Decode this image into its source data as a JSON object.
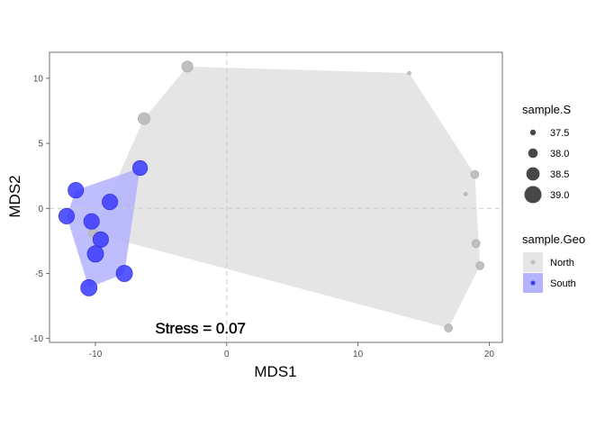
{
  "chart_data": {
    "type": "scatter",
    "xlabel": "MDS1",
    "ylabel": "MDS2",
    "xlim": [
      -13.5,
      21
    ],
    "ylim": [
      -10.3,
      12
    ],
    "x_ticks": [
      -10,
      0,
      10,
      20
    ],
    "y_ticks": [
      -10,
      -5,
      0,
      5,
      10
    ],
    "x_tick_labels": [
      "-10",
      "0",
      "10",
      "20"
    ],
    "y_tick_labels": [
      "-10",
      "-5",
      "0",
      "5",
      "10"
    ],
    "reference_lines": {
      "x": 0,
      "y": 0,
      "style": "dashed",
      "color": "#cccccc"
    },
    "grid": false,
    "annotation": {
      "text": "Stress = 0.07",
      "x": -2,
      "y": -9.2
    },
    "size_legend": {
      "title": "sample.S",
      "placement": "right",
      "entries": [
        {
          "label": "37.5",
          "value": 37.5
        },
        {
          "label": "38.0",
          "value": 38.0
        },
        {
          "label": "38.5",
          "value": 38.5
        },
        {
          "label": "39.0",
          "value": 39.0
        }
      ]
    },
    "color_legend": {
      "title": "sample.Geo",
      "placement": "right",
      "entries": [
        {
          "label": "North",
          "point_color": "#bdbdbd",
          "fill": "#e5e5e5"
        },
        {
          "label": "South",
          "point_color": "#3a3aff",
          "fill": "#b3b3ff"
        }
      ]
    },
    "series": [
      {
        "name": "North",
        "point_color": "#bdbdbd",
        "hull_fill": "#e5e5e5",
        "points": [
          {
            "x": -3,
            "y": 10.9,
            "s": 38.2
          },
          {
            "x": 13.9,
            "y": 10.4,
            "s": 37.2
          },
          {
            "x": -6.3,
            "y": 6.9,
            "s": 38.3
          },
          {
            "x": 18.9,
            "y": 2.6,
            "s": 37.8
          },
          {
            "x": 18.2,
            "y": 1.1,
            "s": 37.2
          },
          {
            "x": 19.0,
            "y": -2.7,
            "s": 37.8
          },
          {
            "x": 19.3,
            "y": -4.4,
            "s": 37.8
          },
          {
            "x": 16.9,
            "y": -9.2,
            "s": 37.8
          },
          {
            "x": -10.2,
            "y": -1.9,
            "s": 37.8
          }
        ]
      },
      {
        "name": "South",
        "point_color": "#3a3aff",
        "hull_fill": "#b3b3ff",
        "points": [
          {
            "x": -6.6,
            "y": 3.1,
            "s": 38.7
          },
          {
            "x": -11.5,
            "y": 1.4,
            "s": 38.8
          },
          {
            "x": -8.9,
            "y": 0.5,
            "s": 38.8
          },
          {
            "x": -12.2,
            "y": -0.6,
            "s": 38.8
          },
          {
            "x": -10.3,
            "y": -1.0,
            "s": 38.8
          },
          {
            "x": -9.6,
            "y": -2.4,
            "s": 38.8
          },
          {
            "x": -10.0,
            "y": -3.5,
            "s": 38.9
          },
          {
            "x": -7.8,
            "y": -5.0,
            "s": 38.9
          },
          {
            "x": -10.5,
            "y": -6.1,
            "s": 38.9
          }
        ]
      }
    ]
  }
}
